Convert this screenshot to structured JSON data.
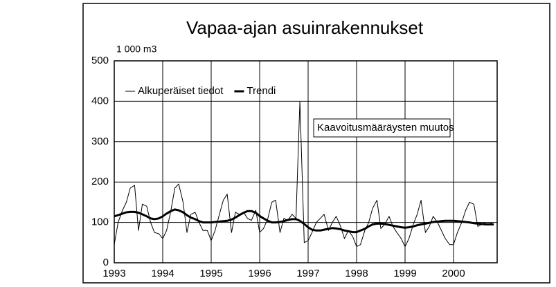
{
  "chart_data": {
    "type": "line",
    "title": "Vapaa-ajan asuinrakennukset",
    "y_label": "1 000 m3",
    "annotation": "Kaavoitusmääräysten muutos",
    "xlim": [
      1993,
      2000.9
    ],
    "xticks": [
      1993,
      1994,
      1995,
      1996,
      1997,
      1998,
      1999,
      2000
    ],
    "ylim": [
      0,
      500
    ],
    "yticks": [
      0,
      100,
      200,
      300,
      400,
      500
    ],
    "grid": true,
    "legend": "top-left",
    "x": [
      1993,
      1993.08,
      1993.17,
      1993.25,
      1993.33,
      1993.42,
      1993.5,
      1993.58,
      1993.67,
      1993.75,
      1993.83,
      1993.92,
      1994,
      1994.08,
      1994.17,
      1994.25,
      1994.33,
      1994.42,
      1994.5,
      1994.58,
      1994.67,
      1994.75,
      1994.83,
      1994.92,
      1995,
      1995.08,
      1995.17,
      1995.25,
      1995.33,
      1995.42,
      1995.5,
      1995.58,
      1995.67,
      1995.75,
      1995.83,
      1995.92,
      1996,
      1996.08,
      1996.17,
      1996.25,
      1996.33,
      1996.42,
      1996.5,
      1996.58,
      1996.67,
      1996.75,
      1996.83,
      1996.92,
      1997,
      1997.08,
      1997.17,
      1997.25,
      1997.33,
      1997.42,
      1997.5,
      1997.58,
      1997.67,
      1997.75,
      1997.83,
      1997.92,
      1998,
      1998.08,
      1998.17,
      1998.25,
      1998.33,
      1998.42,
      1998.5,
      1998.58,
      1998.67,
      1998.75,
      1998.83,
      1998.92,
      1999,
      1999.08,
      1999.17,
      1999.25,
      1999.33,
      1999.42,
      1999.5,
      1999.58,
      1999.67,
      1999.75,
      1999.83,
      1999.92,
      2000,
      2000.08,
      2000.17,
      2000.25,
      2000.33,
      2000.42,
      2000.5,
      2000.58,
      2000.67,
      2000.75,
      2000.83
    ],
    "series": [
      {
        "name": "Alkuperäiset tiedot",
        "color": "#000000",
        "width": 1,
        "values": [
          45,
          100,
          130,
          150,
          185,
          192,
          80,
          145,
          140,
          100,
          75,
          72,
          60,
          80,
          130,
          185,
          195,
          150,
          75,
          120,
          125,
          100,
          80,
          80,
          55,
          80,
          120,
          155,
          170,
          75,
          125,
          120,
          125,
          110,
          105,
          130,
          75,
          85,
          110,
          150,
          155,
          75,
          110,
          105,
          120,
          110,
          400,
          50,
          55,
          75,
          100,
          110,
          120,
          80,
          100,
          115,
          90,
          60,
          80,
          65,
          40,
          45,
          80,
          100,
          135,
          155,
          85,
          95,
          115,
          90,
          75,
          60,
          40,
          60,
          95,
          120,
          155,
          75,
          90,
          115,
          100,
          80,
          60,
          45,
          45,
          75,
          100,
          130,
          150,
          145,
          90,
          95,
          100,
          100,
          95
        ]
      },
      {
        "name": "Trendi",
        "color": "#000000",
        "width": 3,
        "values": [
          115,
          118,
          122,
          125,
          126,
          126,
          124,
          120,
          115,
          110,
          108,
          110,
          115,
          122,
          128,
          132,
          130,
          125,
          118,
          112,
          108,
          103,
          100,
          100,
          100,
          101,
          102,
          103,
          104,
          107,
          112,
          118,
          124,
          128,
          128,
          124,
          116,
          110,
          104,
          100,
          100,
          101,
          103,
          106,
          108,
          108,
          104,
          96,
          88,
          82,
          80,
          80,
          82,
          84,
          86,
          85,
          83,
          80,
          78,
          76,
          76,
          80,
          84,
          90,
          95,
          97,
          97,
          96,
          94,
          92,
          90,
          88,
          87,
          88,
          90,
          93,
          95,
          97,
          99,
          101,
          102,
          103,
          104,
          104,
          104,
          103,
          102,
          101,
          100,
          98,
          97,
          96,
          95,
          95,
          95
        ]
      }
    ]
  }
}
